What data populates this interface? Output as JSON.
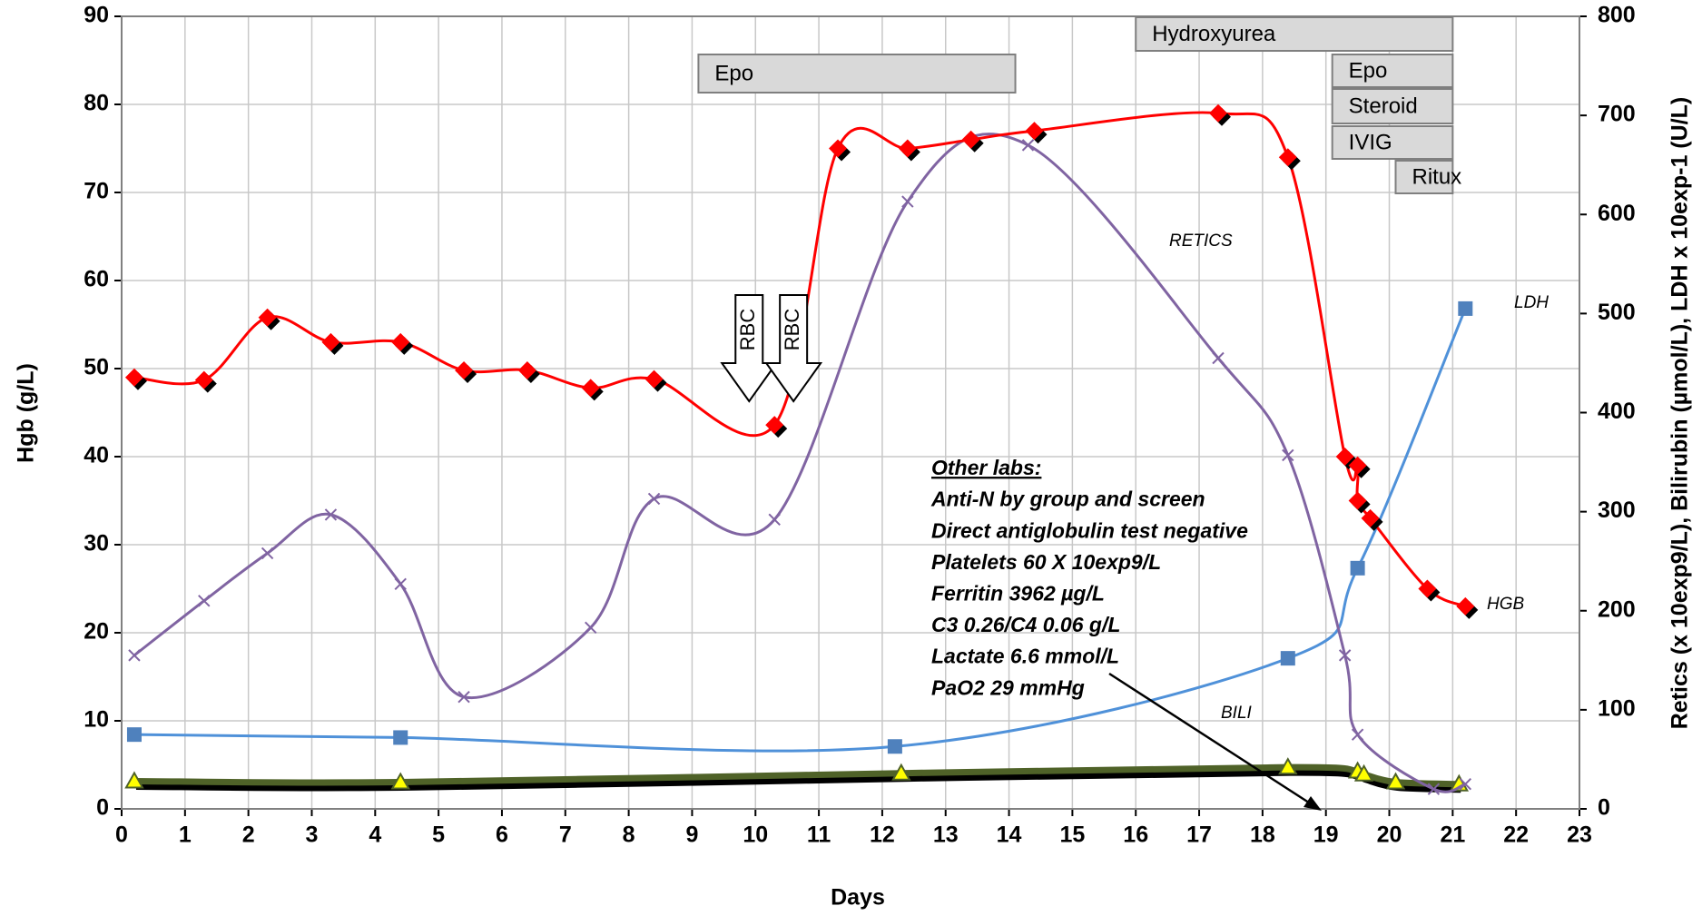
{
  "chart_data": {
    "type": "line",
    "x_label": "Days",
    "y_label": "Hgb (g/L)",
    "y2_label": "Retics (x 10exp9/L), Bilirubin (µmol/L), LDH x 10exp-1 (U/L)",
    "xlim": [
      0,
      23
    ],
    "xticks": [
      0,
      1,
      2,
      3,
      4,
      5,
      6,
      7,
      8,
      9,
      10,
      11,
      12,
      13,
      14,
      15,
      16,
      17,
      18,
      19,
      20,
      21,
      22,
      23
    ],
    "ylim": [
      0,
      90
    ],
    "yticks": [
      0,
      10,
      20,
      30,
      40,
      50,
      60,
      70,
      80,
      90
    ],
    "y2lim": [
      0,
      800
    ],
    "y2ticks": [
      0,
      100,
      200,
      300,
      400,
      500,
      600,
      700,
      800
    ],
    "grid": true,
    "series": [
      {
        "name": "HGB",
        "color": "#ff0000",
        "marker": "diamond",
        "axis": "y",
        "x": [
          0.2,
          1.3,
          2.3,
          3.3,
          4.4,
          5.4,
          6.4,
          7.4,
          8.4,
          10.3,
          11.3,
          12.4,
          13.4,
          14.4,
          17.3,
          18.4,
          19.3,
          19.5,
          19.5,
          19.7,
          20.6,
          21.2
        ],
        "values": [
          49,
          48.7,
          55.8,
          53,
          53,
          49.8,
          49.8,
          47.8,
          48.8,
          43.6,
          75,
          75,
          76,
          77,
          79,
          74,
          40,
          39,
          35,
          33,
          25,
          23
        ]
      },
      {
        "name": "RETICS",
        "color": "#8064a2",
        "marker": "x",
        "axis": "y2",
        "x": [
          0.2,
          1.3,
          2.3,
          3.3,
          4.4,
          5.4,
          7.4,
          8.4,
          10.3,
          12.4,
          14.3,
          17.3,
          18.4,
          19.3,
          19.5,
          20.7,
          21.2
        ],
        "values": [
          155,
          210,
          258,
          297,
          227,
          113,
          183,
          313,
          292,
          613,
          670,
          455,
          357,
          155,
          75,
          20,
          25
        ]
      },
      {
        "name": "LDH",
        "color": "#4f91d9",
        "marker": "square",
        "axis": "y2",
        "x": [
          0.2,
          4.4,
          12.2,
          18.4,
          19.5,
          21.2
        ],
        "values": [
          75,
          72,
          63,
          152,
          243,
          505
        ]
      },
      {
        "name": "BILI",
        "color": "#4f6228",
        "marker": "triangle",
        "axis": "y2",
        "x": [
          0.2,
          4.4,
          12.3,
          18.4,
          19.5,
          19.6,
          20.1,
          21.1
        ],
        "values": [
          28,
          27,
          36,
          42,
          38,
          35,
          27,
          25
        ]
      }
    ],
    "treatments": [
      {
        "label": "Hydroxyurea",
        "start": 16,
        "end": 21
      },
      {
        "label": "Epo",
        "start": 9.1,
        "end": 14.1
      },
      {
        "label": "Epo",
        "start": 19.1,
        "end": 21
      },
      {
        "label": "Steroid",
        "start": 19.1,
        "end": 21
      },
      {
        "label": "IVIG",
        "start": 19.1,
        "end": 21
      },
      {
        "label": "Ritux",
        "start": 20.1,
        "end": 21
      }
    ],
    "transfusions": [
      {
        "label": "RBC",
        "x": 9.9
      },
      {
        "label": "RBC",
        "x": 10.6
      }
    ],
    "other_labs": {
      "title": "Other labs:",
      "lines": [
        "Anti-N by group and screen",
        "Direct antiglobulin test negative",
        "Platelets 60 X 10exp9/L",
        "Ferritin 3962 µg/L",
        "C3 0.26/C4 0.06 g/L",
        "Lactate 6.6 mmol/L",
        "PaO2 29 mmHg"
      ]
    }
  }
}
